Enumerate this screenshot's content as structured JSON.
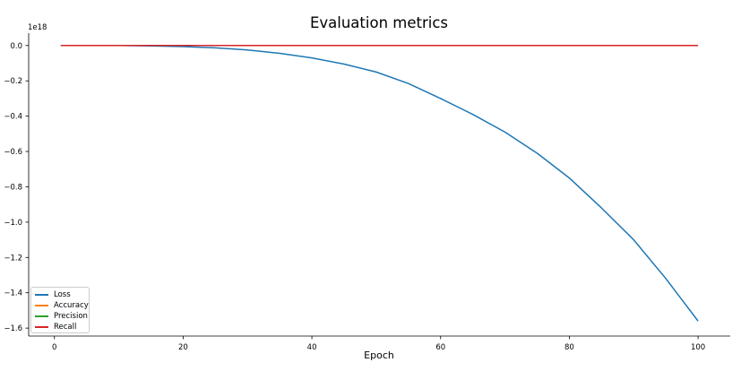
{
  "chart_data": {
    "type": "line",
    "title": "Evaluation metrics",
    "xlabel": "Epoch",
    "ylabel": "",
    "offset_label": "1e18",
    "xlim": [
      -4,
      105
    ],
    "ylim": [
      -1.645,
      0.07
    ],
    "x_ticks": [
      0,
      20,
      40,
      60,
      80,
      100
    ],
    "x_tick_labels": [
      "0",
      "20",
      "40",
      "60",
      "80",
      "100"
    ],
    "y_ticks": [
      0.0,
      -0.2,
      -0.4,
      -0.6,
      -0.8,
      -1.0,
      -1.2,
      -1.4,
      -1.6
    ],
    "y_tick_labels": [
      "0.0",
      "−0.2",
      "−0.4",
      "−0.6",
      "−0.8",
      "−1.0",
      "−1.2",
      "−1.4",
      "−1.6"
    ],
    "grid": false,
    "legend_position": "bottom-left",
    "series": [
      {
        "name": "Loss",
        "color": "#1f77b4",
        "x": [
          1,
          10,
          15,
          20,
          25,
          30,
          35,
          40,
          45,
          50,
          55,
          60,
          65,
          70,
          75,
          80,
          85,
          90,
          95,
          100
        ],
        "y": [
          0.0,
          0.0,
          -0.002,
          -0.006,
          -0.013,
          -0.025,
          -0.044,
          -0.07,
          -0.105,
          -0.15,
          -0.215,
          -0.3,
          -0.39,
          -0.49,
          -0.61,
          -0.75,
          -0.92,
          -1.1,
          -1.32,
          -1.56
        ]
      },
      {
        "name": "Accuracy",
        "color": "#ff7f0e",
        "x": [
          1,
          100
        ],
        "y": [
          0.0,
          0.0
        ]
      },
      {
        "name": "Precision",
        "color": "#2ca02c",
        "x": [
          1,
          100
        ],
        "y": [
          0.0,
          0.0
        ]
      },
      {
        "name": "Recall",
        "color": "#d62728",
        "x": [
          1,
          100
        ],
        "y": [
          0.0,
          0.0
        ]
      }
    ]
  }
}
